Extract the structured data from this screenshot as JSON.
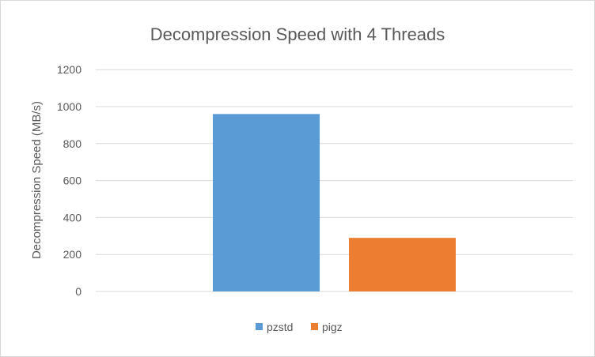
{
  "chart_data": {
    "type": "bar",
    "title": "Decompression Speed with 4 Threads",
    "xlabel": "",
    "ylabel": "Decompression Speed (MB/s)",
    "ylim": [
      0,
      1200
    ],
    "yticks": [
      0,
      200,
      400,
      600,
      800,
      1000,
      1200
    ],
    "grid": true,
    "legend_placement": "bottom",
    "series": [
      {
        "name": "pzstd",
        "values": [
          960
        ],
        "color": "#5b9bd5"
      },
      {
        "name": "pigz",
        "values": [
          290
        ],
        "color": "#ed7d31"
      }
    ]
  }
}
